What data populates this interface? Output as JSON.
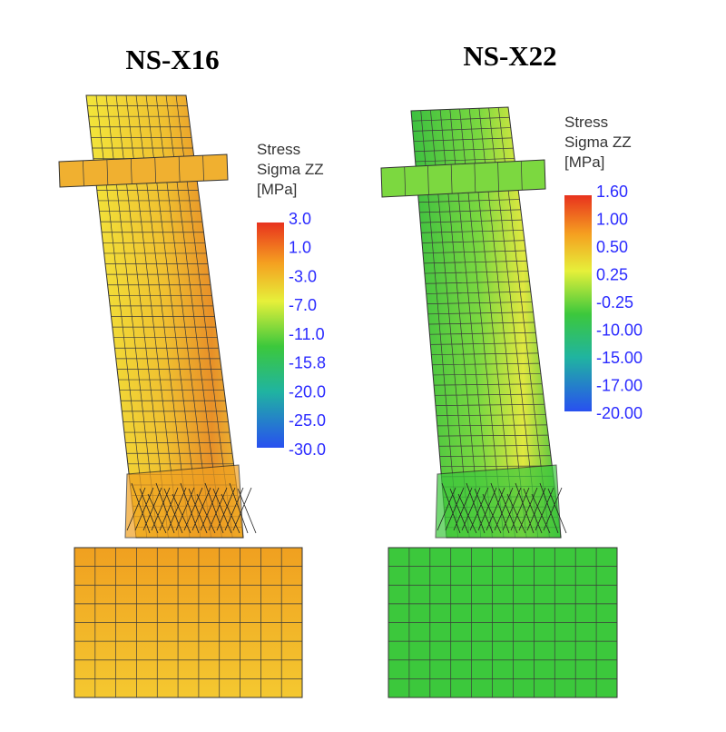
{
  "panels": [
    {
      "title": "NS-X16",
      "legend": {
        "title": [
          "Stress",
          "Sigma ZZ",
          "[MPa]"
        ],
        "labels": [
          "3.0",
          "1.0",
          "-3.0",
          "-7.0",
          "-11.0",
          "-15.8",
          "-20.0",
          "-25.0",
          "-30.0"
        ]
      }
    },
    {
      "title": "NS-X22",
      "legend": {
        "title": [
          "Stress",
          "Sigma ZZ",
          "[MPa]"
        ],
        "labels": [
          "1.60",
          "1.00",
          "0.50",
          "0.25",
          "-0.25",
          "-10.00",
          "-15.00",
          "-17.00",
          "-20.00"
        ]
      }
    }
  ]
}
